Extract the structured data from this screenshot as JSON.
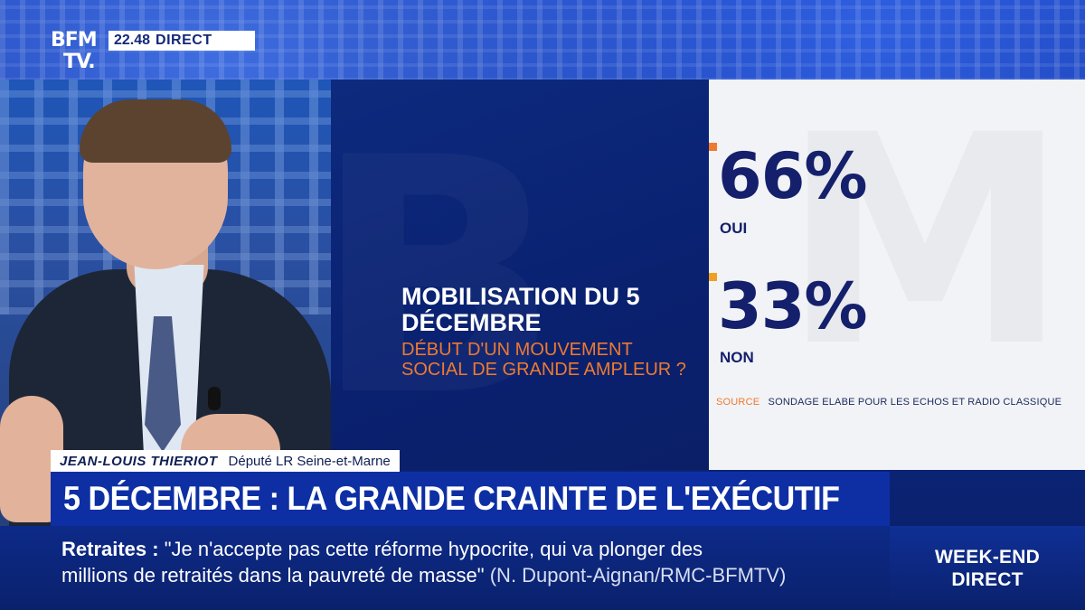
{
  "channel": {
    "logo_line1": "BFM",
    "logo_line2": "TV.",
    "time": "22.48",
    "live_label": "DIRECT"
  },
  "poll": {
    "title": "MOBILISATION DU 5 DÉCEMBRE",
    "subtitle": "DÉBUT D'UN MOUVEMENT SOCIAL DE GRANDE AMPLEUR ?",
    "results": [
      {
        "value": "66%",
        "label": "OUI"
      },
      {
        "value": "33%",
        "label": "NON"
      }
    ],
    "source_label": "SOURCE",
    "source_text": "SONDAGE ELABE POUR LES ECHOS ET RADIO CLASSIQUE",
    "colors": {
      "accent": "#ee7a2f",
      "navy": "#14206b"
    }
  },
  "guest": {
    "name": "JEAN-LOUIS THIERIOT",
    "role": "Député LR Seine-et-Marne"
  },
  "headline": "5 DÉCEMBRE : LA GRANDE CRAINTE DE L'EXÉCUTIF",
  "ticker": {
    "topic": "Retraites",
    "separator": " : ",
    "line1_quote": "\"Je n'accepte pas cette réforme hypocrite, qui va plonger des",
    "line2_quote": "millions de retraités dans la pauvreté de masse\"",
    "credit": "(N. Dupont-Aignan/RMC-BFMTV)"
  },
  "program": {
    "line1": "WEEK-END",
    "line2": "DIRECT"
  }
}
